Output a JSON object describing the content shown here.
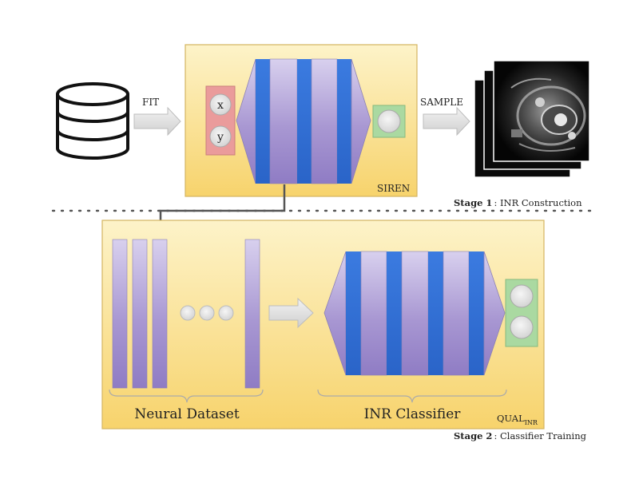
{
  "stage1": {
    "fit_label": "FIT",
    "sample_label": "SAMPLE",
    "network_label": "SIREN",
    "input_x": "x",
    "input_y": "y",
    "stage_name": "Stage 1",
    "stage_desc": ": INR Construction"
  },
  "stage2": {
    "dataset_label": "Neural Dataset",
    "classifier_label": "INR Classifier",
    "box_label_main": "QUAL",
    "box_label_sub": "INR",
    "stage_name": "Stage 2",
    "stage_desc": ": Classifier Training"
  },
  "colors": {
    "panel_top": "#fdf2c4",
    "panel_bottom": "#f6d26a",
    "panel_border": "#d9b866",
    "blue_layer": "#2f6fd6",
    "purple_layer": "#a795d0",
    "input_box": "#e99a9a",
    "output_box": "#a9d9a0",
    "arrow_fill": "#dcdcdc",
    "connector": "#555555"
  },
  "icons": {
    "database": "database-icon",
    "mri": "mri-slices-image"
  }
}
